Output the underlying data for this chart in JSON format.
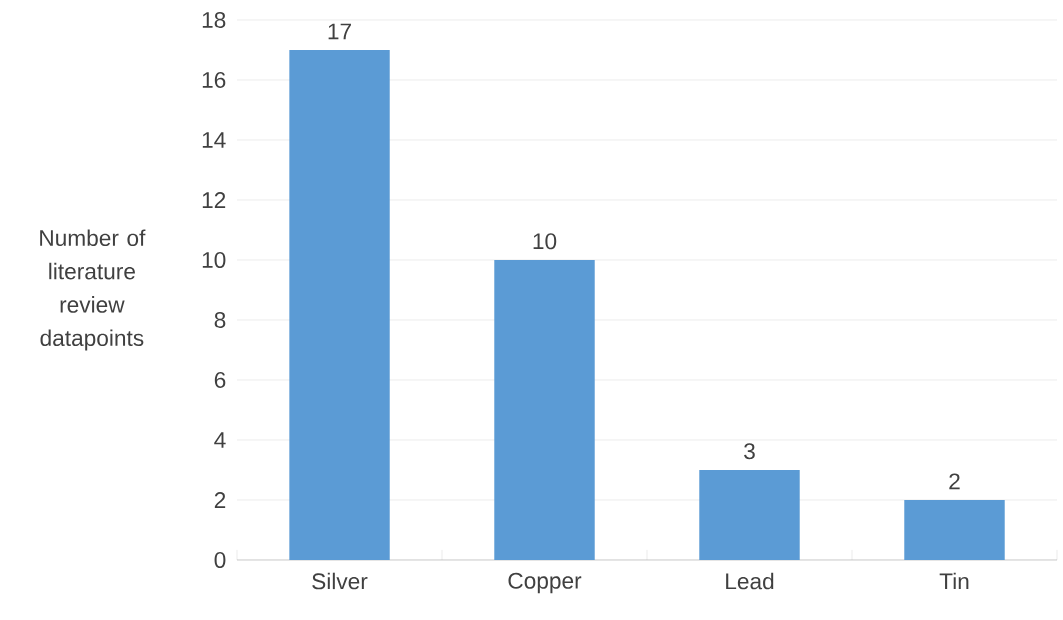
{
  "chart_data": {
    "type": "bar",
    "ylabel": "Number of literature review datapoints",
    "categories": [
      "Silver",
      "Copper",
      "Lead",
      "Tin"
    ],
    "values": [
      17,
      10,
      3,
      2
    ],
    "color": "#5b9bd5",
    "ylim": [
      0,
      18
    ],
    "yticks": [
      0,
      2,
      4,
      6,
      8,
      10,
      12,
      14,
      16,
      18
    ],
    "grid": "y",
    "data_labels": true
  }
}
